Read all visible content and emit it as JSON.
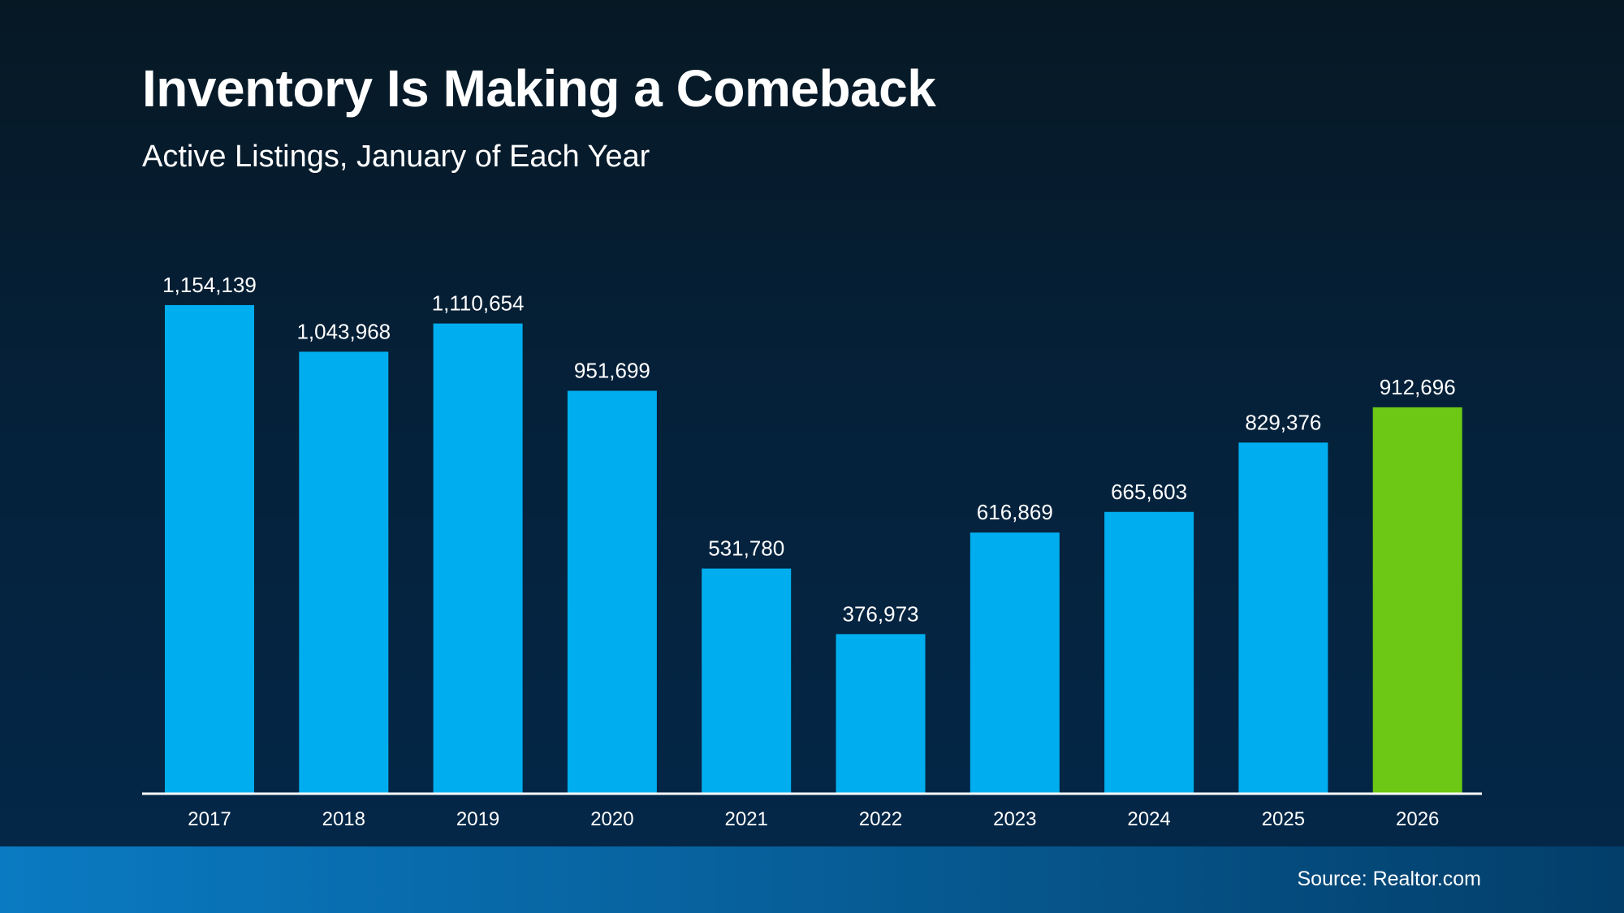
{
  "chart_data": {
    "type": "bar",
    "title": "Inventory Is Making a Comeback",
    "subtitle": "Active Listings, January of Each Year",
    "categories": [
      "2017",
      "2018",
      "2019",
      "2020",
      "2021",
      "2022",
      "2023",
      "2024",
      "2025",
      "2026"
    ],
    "values": [
      1154139,
      1043968,
      1110654,
      951699,
      531780,
      376973,
      616869,
      665603,
      829376,
      912696
    ],
    "data_labels": [
      "1,154,139",
      "1,043,968",
      "1,110,654",
      "951,699",
      "531,780",
      "376,973",
      "616,869",
      "665,603",
      "829,376",
      "912,696"
    ],
    "xlabel": "",
    "ylabel": "",
    "ylim": [
      0,
      1200000
    ],
    "grid": false,
    "colors": {
      "default": "#00aeef",
      "highlight": "#6cc814",
      "highlight_category": "2026"
    }
  },
  "footer": {
    "source": "Source: Realtor.com"
  }
}
